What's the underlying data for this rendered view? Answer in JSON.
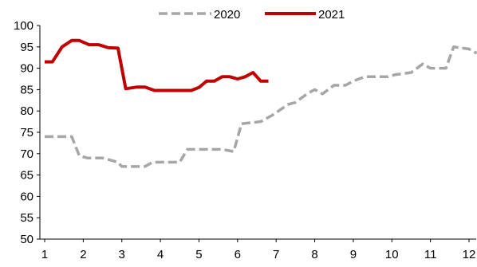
{
  "chart_data": {
    "type": "line",
    "title": "",
    "xlabel": "",
    "ylabel": "",
    "xlim": [
      1,
      12.2
    ],
    "ylim": [
      50,
      100
    ],
    "x_ticks": [
      1,
      2,
      3,
      4,
      5,
      6,
      7,
      8,
      9,
      10,
      11,
      12
    ],
    "y_ticks": [
      50,
      55,
      60,
      65,
      70,
      75,
      80,
      85,
      90,
      95,
      100
    ],
    "grid": false,
    "legend_position": "top-center",
    "series": [
      {
        "name": "2020",
        "color": "#a6a6a6",
        "style": "dashed",
        "x": [
          1.0,
          1.7,
          1.9,
          2.1,
          2.5,
          2.9,
          3.0,
          3.6,
          3.8,
          4.5,
          4.7,
          5.6,
          5.9,
          6.1,
          6.6,
          6.9,
          7.3,
          7.5,
          7.8,
          8.0,
          8.2,
          8.5,
          8.8,
          9.0,
          9.3,
          9.9,
          10.1,
          10.5,
          10.8,
          11.0,
          11.4,
          11.6,
          12.0,
          12.2
        ],
        "y": [
          74.0,
          74.0,
          69.5,
          69.0,
          69.0,
          68.0,
          67.0,
          67.0,
          68.0,
          68.0,
          71.0,
          71.0,
          70.5,
          77.0,
          77.5,
          79.0,
          81.5,
          82.0,
          84.0,
          85.0,
          84.0,
          86.0,
          86.0,
          87.0,
          88.0,
          88.0,
          88.5,
          89.0,
          91.0,
          90.0,
          90.0,
          95.0,
          94.5,
          93.5
        ]
      },
      {
        "name": "2021",
        "color": "#c00000",
        "style": "solid",
        "x": [
          1.0,
          1.2,
          1.45,
          1.7,
          1.9,
          2.15,
          2.4,
          2.65,
          2.9,
          3.1,
          3.4,
          3.6,
          3.85,
          4.0,
          4.2,
          4.4,
          4.6,
          4.8,
          5.0,
          5.2,
          5.4,
          5.6,
          5.8,
          6.0,
          6.2,
          6.4,
          6.6,
          6.8
        ],
        "y": [
          91.5,
          91.5,
          95.0,
          96.5,
          96.5,
          95.5,
          95.5,
          94.8,
          94.7,
          85.2,
          85.6,
          85.6,
          84.8,
          84.8,
          84.8,
          84.8,
          84.8,
          84.8,
          85.5,
          87.0,
          87.0,
          88.0,
          88.0,
          87.5,
          88.0,
          89.0,
          87.0,
          87.0
        ]
      }
    ]
  }
}
